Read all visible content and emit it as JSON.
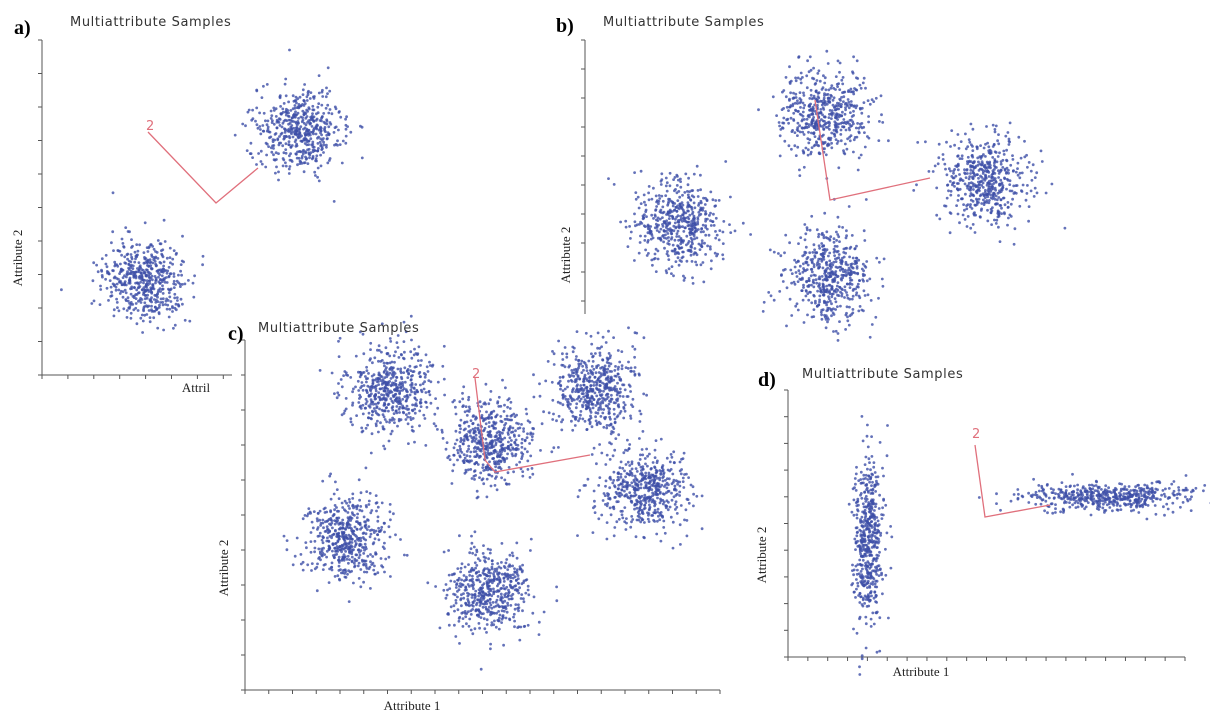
{
  "chart_data": [
    {
      "type": "scatter",
      "panel_label": "a)",
      "title": "Multiattribute Samples",
      "x_label": "Attril",
      "y_label": "Attribute 2",
      "annotation": "2",
      "color": "#3d4fa8",
      "xlim": [
        0,
        100
      ],
      "ylim": [
        0,
        100
      ],
      "clusters": {
        "x": [
          19.9,
          49.8
        ],
        "y": [
          28.4,
          73.1
        ],
        "sx": [
          4.0,
          4.0
        ],
        "sy": [
          6.2,
          6.2
        ]
      }
    },
    {
      "type": "scatter",
      "panel_label": "b)",
      "title": "Multiattribute Samples",
      "y_label": "Attribute 2",
      "color": "#3d4fa8",
      "xlim": [
        0,
        100
      ],
      "ylim": [
        0,
        100
      ],
      "clusters": {
        "x": [
          15.4,
          39.0,
          65.0,
          39.8
        ],
        "y": [
          36.2,
          74.1,
          51.7,
          19.0
        ],
        "sx": [
          3.6,
          3.6,
          3.6,
          3.6
        ],
        "sy": [
          7.6,
          7.6,
          7.6,
          7.6
        ]
      }
    },
    {
      "type": "scatter",
      "panel_label": "c)",
      "title": "Multiattribute Samples",
      "x_label": "Attribute 1",
      "y_label": "Attribute 2",
      "annotation": "2",
      "color": "#3d4fa8",
      "xlim": [
        0,
        100
      ],
      "ylim": [
        0,
        100
      ],
      "clusters": {
        "x": [
          30.5,
          51.6,
          73.7,
          84.2,
          21.1,
          51.6
        ],
        "y": [
          85.7,
          71.4,
          85.7,
          57.1,
          42.9,
          28.6
        ],
        "sx": [
          4.4,
          4.4,
          4.4,
          4.4,
          4.4,
          4.4
        ],
        "sy": [
          6.0,
          6.0,
          6.0,
          6.0,
          6.0,
          6.0
        ]
      }
    },
    {
      "type": "scatter",
      "panel_label": "d)",
      "title": "Multiattribute Samples",
      "x_label": "Attribute 1",
      "y_label": "Attribute 2",
      "annotation": "2",
      "color": "#3d4fa8",
      "xlim": [
        0,
        100
      ],
      "ylim": [
        0,
        100
      ],
      "clusters": {
        "x": [
          20.2,
          81.1
        ],
        "y": [
          43.8,
          59.9
        ],
        "sx": [
          1.8,
          10.1
        ],
        "sy": [
          15.0,
          2.6
        ]
      }
    }
  ]
}
